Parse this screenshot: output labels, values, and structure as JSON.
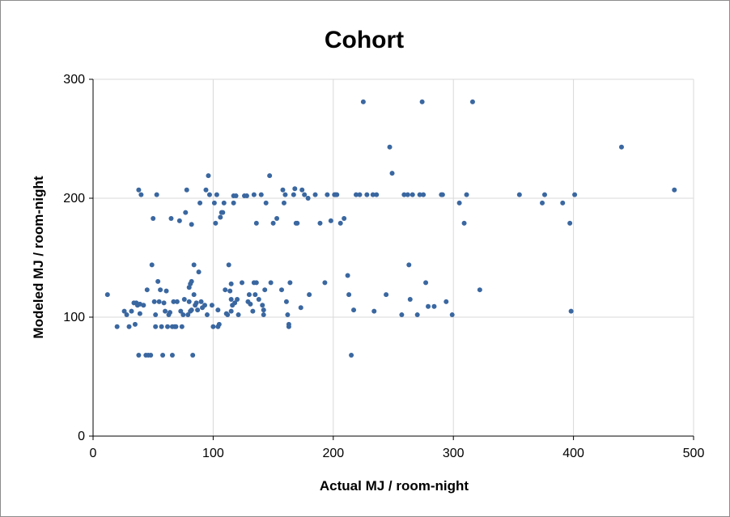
{
  "chart_data": {
    "type": "scatter",
    "title": "Cohort",
    "xlabel": "Actual MJ / room-night",
    "ylabel": "Modeled MJ / room-night",
    "xlim": [
      0,
      500
    ],
    "ylim": [
      0,
      300
    ],
    "x_ticks": [
      0,
      100,
      200,
      300,
      400,
      500
    ],
    "y_ticks": [
      0,
      100,
      200,
      300
    ],
    "grid": true,
    "legend": "none",
    "colors": {
      "points": "#3a67a0",
      "grid": "#d9d9d9",
      "axis": "#000000"
    },
    "series": [
      {
        "points": [
          [
            12,
            119
          ],
          [
            20,
            92
          ],
          [
            26,
            105
          ],
          [
            28,
            102
          ],
          [
            30,
            92
          ],
          [
            32,
            105
          ],
          [
            34,
            112
          ],
          [
            35,
            94
          ],
          [
            36,
            112
          ],
          [
            37,
            110
          ],
          [
            38,
            207
          ],
          [
            38,
            68
          ],
          [
            39,
            103
          ],
          [
            39,
            111
          ],
          [
            40,
            203
          ],
          [
            42,
            110
          ],
          [
            44,
            68
          ],
          [
            45,
            123
          ],
          [
            46,
            68
          ],
          [
            48,
            68
          ],
          [
            49,
            144
          ],
          [
            50,
            183
          ],
          [
            51,
            113
          ],
          [
            52,
            92
          ],
          [
            52,
            102
          ],
          [
            53,
            203
          ],
          [
            54,
            130
          ],
          [
            55,
            113
          ],
          [
            56,
            123
          ],
          [
            57,
            92
          ],
          [
            58,
            68
          ],
          [
            59,
            112
          ],
          [
            60,
            105
          ],
          [
            61,
            122
          ],
          [
            62,
            92
          ],
          [
            63,
            102
          ],
          [
            64,
            104
          ],
          [
            65,
            183
          ],
          [
            66,
            68
          ],
          [
            66,
            92
          ],
          [
            67,
            113
          ],
          [
            68,
            92
          ],
          [
            69,
            92
          ],
          [
            70,
            113
          ],
          [
            72,
            181
          ],
          [
            73,
            105
          ],
          [
            74,
            92
          ],
          [
            75,
            102
          ],
          [
            76,
            115
          ],
          [
            77,
            188
          ],
          [
            78,
            207
          ],
          [
            79,
            102
          ],
          [
            80,
            113
          ],
          [
            80,
            125
          ],
          [
            81,
            105
          ],
          [
            81,
            128
          ],
          [
            82,
            178
          ],
          [
            82,
            106
          ],
          [
            82,
            130
          ],
          [
            83,
            68
          ],
          [
            84,
            119
          ],
          [
            84,
            144
          ],
          [
            85,
            110
          ],
          [
            86,
            112
          ],
          [
            87,
            106
          ],
          [
            88,
            138
          ],
          [
            89,
            196
          ],
          [
            90,
            113
          ],
          [
            91,
            108
          ],
          [
            93,
            110
          ],
          [
            94,
            207
          ],
          [
            95,
            102
          ],
          [
            96,
            219
          ],
          [
            97,
            203
          ],
          [
            99,
            110
          ],
          [
            100,
            92
          ],
          [
            101,
            196
          ],
          [
            102,
            179
          ],
          [
            103,
            203
          ],
          [
            104,
            92
          ],
          [
            104,
            106
          ],
          [
            105,
            94
          ],
          [
            106,
            184
          ],
          [
            107,
            188
          ],
          [
            108,
            188
          ],
          [
            109,
            196
          ],
          [
            110,
            123
          ],
          [
            111,
            103
          ],
          [
            112,
            102
          ],
          [
            113,
            144
          ],
          [
            114,
            122
          ],
          [
            115,
            128
          ],
          [
            115,
            115
          ],
          [
            115,
            105
          ],
          [
            116,
            110
          ],
          [
            117,
            196
          ],
          [
            117,
            202
          ],
          [
            118,
            112
          ],
          [
            119,
            202
          ],
          [
            120,
            115
          ],
          [
            121,
            102
          ],
          [
            124,
            129
          ],
          [
            126,
            202
          ],
          [
            128,
            202
          ],
          [
            129,
            113
          ],
          [
            130,
            119
          ],
          [
            131,
            111
          ],
          [
            133,
            105
          ],
          [
            134,
            129
          ],
          [
            134,
            203
          ],
          [
            135,
            119
          ],
          [
            136,
            129
          ],
          [
            136,
            179
          ],
          [
            138,
            115
          ],
          [
            140,
            203
          ],
          [
            141,
            110
          ],
          [
            142,
            102
          ],
          [
            142,
            106
          ],
          [
            143,
            123
          ],
          [
            144,
            196
          ],
          [
            147,
            219
          ],
          [
            148,
            129
          ],
          [
            150,
            179
          ],
          [
            153,
            183
          ],
          [
            157,
            123
          ],
          [
            158,
            207
          ],
          [
            159,
            196
          ],
          [
            160,
            203
          ],
          [
            161,
            113
          ],
          [
            162,
            102
          ],
          [
            163,
            94
          ],
          [
            163,
            92
          ],
          [
            164,
            129
          ],
          [
            167,
            203
          ],
          [
            168,
            208
          ],
          [
            169,
            179
          ],
          [
            170,
            179
          ],
          [
            173,
            108
          ],
          [
            174,
            207
          ],
          [
            176,
            203
          ],
          [
            179,
            200
          ],
          [
            180,
            119
          ],
          [
            185,
            203
          ],
          [
            189,
            179
          ],
          [
            193,
            129
          ],
          [
            195,
            203
          ],
          [
            198,
            181
          ],
          [
            201,
            203
          ],
          [
            202,
            203
          ],
          [
            203,
            203
          ],
          [
            206,
            179
          ],
          [
            209,
            183
          ],
          [
            212,
            135
          ],
          [
            213,
            119
          ],
          [
            215,
            68
          ],
          [
            217,
            106
          ],
          [
            219,
            203
          ],
          [
            222,
            203
          ],
          [
            225,
            281
          ],
          [
            228,
            203
          ],
          [
            233,
            203
          ],
          [
            234,
            105
          ],
          [
            236,
            203
          ],
          [
            244,
            119
          ],
          [
            247,
            243
          ],
          [
            249,
            221
          ],
          [
            257,
            102
          ],
          [
            259,
            203
          ],
          [
            262,
            203
          ],
          [
            263,
            144
          ],
          [
            264,
            115
          ],
          [
            266,
            203
          ],
          [
            270,
            102
          ],
          [
            272,
            203
          ],
          [
            274,
            281
          ],
          [
            275,
            203
          ],
          [
            277,
            129
          ],
          [
            279,
            109
          ],
          [
            284,
            109
          ],
          [
            290,
            203
          ],
          [
            291,
            203
          ],
          [
            294,
            113
          ],
          [
            299,
            102
          ],
          [
            305,
            196
          ],
          [
            309,
            179
          ],
          [
            311,
            203
          ],
          [
            316,
            281
          ],
          [
            322,
            123
          ],
          [
            355,
            203
          ],
          [
            374,
            196
          ],
          [
            376,
            203
          ],
          [
            391,
            196
          ],
          [
            397,
            179
          ],
          [
            398,
            105
          ],
          [
            401,
            203
          ],
          [
            440,
            243
          ],
          [
            484,
            207
          ]
        ]
      }
    ]
  }
}
